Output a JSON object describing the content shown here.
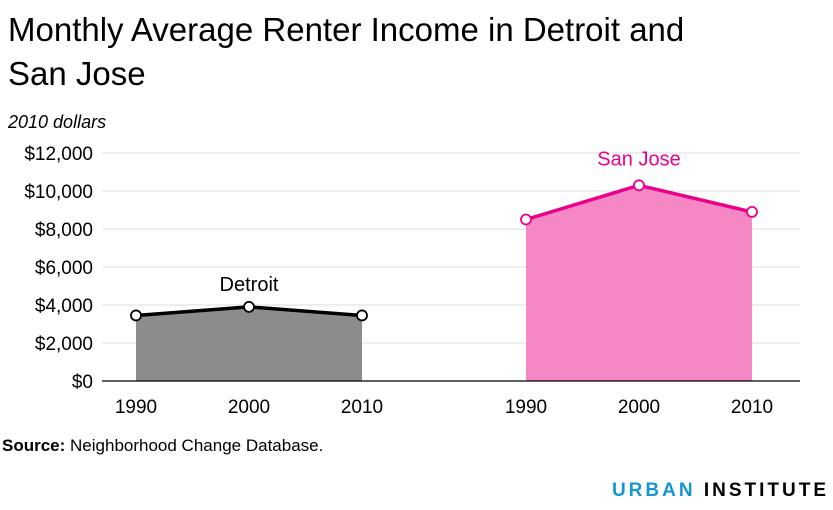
{
  "title": "Monthly Average Renter Income in Detroit and San Jose",
  "source_label": "Source:",
  "source_text": "Neighborhood Change Database.",
  "logo_word1": "URBAN",
  "logo_word2": "INSTITUTE",
  "colors": {
    "detroit_line": "#000000",
    "detroit_fill": "#8c8c8c",
    "sanjose_line": "#ec008b",
    "sanjose_fill": "#f587c5",
    "grid": "#dedede",
    "urban_blue": "#1696d2"
  },
  "chart_data": {
    "type": "area",
    "ylabel": "2010 dollars",
    "ylim": [
      0,
      12000
    ],
    "yticks": [
      0,
      2000,
      4000,
      6000,
      8000,
      10000,
      12000
    ],
    "ytick_labels": [
      "$0",
      "$2,000",
      "$4,000",
      "$6,000",
      "$8,000",
      "$10,000",
      "$12,000"
    ],
    "grid": true,
    "panels": [
      {
        "name": "Detroit",
        "x": [
          "1990",
          "2000",
          "2010"
        ],
        "values": [
          3450,
          3900,
          3450
        ]
      },
      {
        "name": "San Jose",
        "x": [
          "1990",
          "2000",
          "2010"
        ],
        "values": [
          8500,
          10300,
          8900
        ]
      }
    ]
  }
}
